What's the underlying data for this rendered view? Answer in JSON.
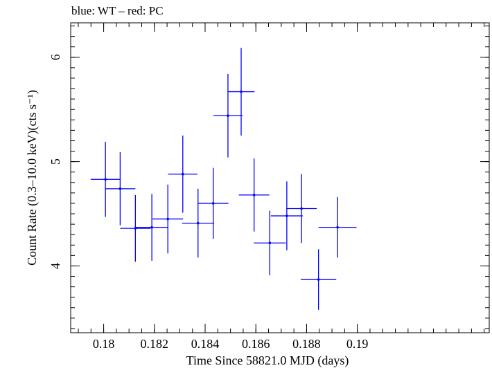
{
  "chart_data": {
    "type": "scatter",
    "title": "blue: WT – red: PC",
    "xlabel": "Time Since 58821.0 MJD (days)",
    "ylabel": "Count Rate (0.3–10.0 keV)(cts s⁻¹)",
    "xlim": [
      0.1787,
      0.1952
    ],
    "ylim": [
      3.36,
      6.33
    ],
    "xticks": [
      0.18,
      0.182,
      0.184,
      0.186,
      0.188,
      0.19
    ],
    "xtick_labels": [
      "0.18",
      "0.182",
      "0.184",
      "0.186",
      "0.188",
      "0.19"
    ],
    "yticks": [
      4,
      5,
      6
    ],
    "ytick_labels": [
      "4",
      "5",
      "6"
    ],
    "grid": false,
    "series": [
      {
        "color": "#0000ff",
        "points": [
          {
            "x": 0.18007,
            "y": 4.83,
            "xerr": 0.00058,
            "yerr": 0.36
          },
          {
            "x": 0.18065,
            "y": 4.74,
            "xerr": 0.0006,
            "yerr": 0.35
          },
          {
            "x": 0.18125,
            "y": 4.36,
            "xerr": 0.0006,
            "yerr": 0.32
          },
          {
            "x": 0.1819,
            "y": 4.37,
            "xerr": 0.00065,
            "yerr": 0.32
          },
          {
            "x": 0.18253,
            "y": 4.45,
            "xerr": 0.0006,
            "yerr": 0.33
          },
          {
            "x": 0.18312,
            "y": 4.88,
            "xerr": 0.00058,
            "yerr": 0.37
          },
          {
            "x": 0.18372,
            "y": 4.41,
            "xerr": 0.00063,
            "yerr": 0.33
          },
          {
            "x": 0.18432,
            "y": 4.6,
            "xerr": 0.0006,
            "yerr": 0.34
          },
          {
            "x": 0.1849,
            "y": 5.44,
            "xerr": 0.00058,
            "yerr": 0.4
          },
          {
            "x": 0.18542,
            "y": 5.67,
            "xerr": 0.00053,
            "yerr": 0.42
          },
          {
            "x": 0.18593,
            "y": 4.68,
            "xerr": 0.0006,
            "yerr": 0.35
          },
          {
            "x": 0.18655,
            "y": 4.22,
            "xerr": 0.00063,
            "yerr": 0.31
          },
          {
            "x": 0.18722,
            "y": 4.48,
            "xerr": 0.00063,
            "yerr": 0.33
          },
          {
            "x": 0.1878,
            "y": 4.55,
            "xerr": 0.0006,
            "yerr": 0.33
          },
          {
            "x": 0.18847,
            "y": 3.87,
            "xerr": 0.0007,
            "yerr": 0.29
          },
          {
            "x": 0.18922,
            "y": 4.37,
            "xerr": 0.00075,
            "yerr": 0.29
          }
        ]
      }
    ]
  }
}
